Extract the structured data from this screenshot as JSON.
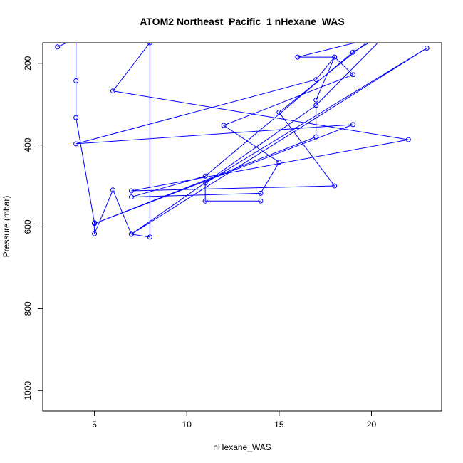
{
  "chart_data": {
    "type": "line",
    "title": "ATOM2 Northeast_Pacific_1 nHexane_WAS",
    "xlabel": "nHexane_WAS",
    "ylabel": "Pressure (mbar)",
    "xlim": [
      2.2,
      23.8
    ],
    "ylim": [
      1050,
      150
    ],
    "y_reversed": true,
    "x_ticks": [
      5,
      10,
      15,
      20
    ],
    "y_ticks": [
      200,
      400,
      600,
      800,
      1000
    ],
    "grid": false,
    "series_color": "#0000ff",
    "points": [
      {
        "x": 3,
        "y": 160
      },
      {
        "x": 4,
        "y": 140
      },
      {
        "x": 4,
        "y": 243
      },
      {
        "x": 4,
        "y": 333
      },
      {
        "x": 5,
        "y": 590
      },
      {
        "x": 5,
        "y": 617
      },
      {
        "x": 6,
        "y": 510
      },
      {
        "x": 7,
        "y": 618
      },
      {
        "x": 8,
        "y": 625
      },
      {
        "x": 8,
        "y": 150
      },
      {
        "x": 6,
        "y": 268
      },
      {
        "x": 22,
        "y": 387
      },
      {
        "x": 7,
        "y": 512
      },
      {
        "x": 18,
        "y": 500
      },
      {
        "x": 15,
        "y": 320
      },
      {
        "x": 20,
        "y": 140
      },
      {
        "x": 16,
        "y": 185
      },
      {
        "x": 18,
        "y": 185
      },
      {
        "x": 17,
        "y": 240
      },
      {
        "x": 4,
        "y": 397
      },
      {
        "x": 19,
        "y": 350
      },
      {
        "x": 5,
        "y": 592
      },
      {
        "x": 17,
        "y": 380
      },
      {
        "x": 17,
        "y": 290
      },
      {
        "x": 18,
        "y": 185
      },
      {
        "x": 19,
        "y": 228
      },
      {
        "x": 12,
        "y": 352
      },
      {
        "x": 15,
        "y": 442
      },
      {
        "x": 14,
        "y": 518
      },
      {
        "x": 7,
        "y": 527
      },
      {
        "x": 11,
        "y": 476
      },
      {
        "x": 19,
        "y": 173
      },
      {
        "x": 21,
        "y": 120
      },
      {
        "x": 17,
        "y": 303
      },
      {
        "x": 7,
        "y": 618
      },
      {
        "x": 23,
        "y": 163
      },
      {
        "x": 11,
        "y": 493
      },
      {
        "x": 11,
        "y": 537
      },
      {
        "x": 14,
        "y": 537
      }
    ]
  }
}
